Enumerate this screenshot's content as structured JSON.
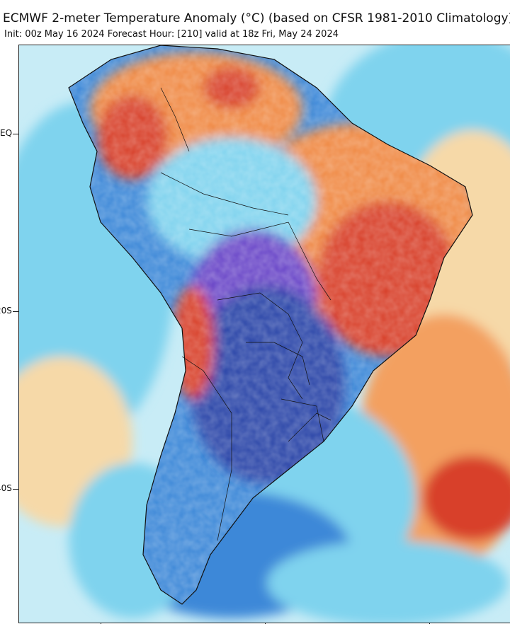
{
  "header": {
    "title": "ECMWF 2-meter Temperature Anomaly (°C) (based on CFSR 1981-2010 Climatology)",
    "subtitle": "Init: 00z May 16 2024   Forecast Hour: [210]   valid at 18z Fri, May 24 2024"
  },
  "axis": {
    "lat_labels": [
      "EQ",
      "20S",
      "40S"
    ]
  },
  "colors": {
    "ocean_warm_light": "#f6d9a8",
    "ocean_cool_light": "#c8ecf6",
    "ocean_cyan": "#7fd3ee",
    "ocean_blue": "#3c88d8",
    "land_deep_blue": "#2a45a8",
    "land_purple": "#6b47c8",
    "land_orange": "#f08a45",
    "land_red": "#d8412c",
    "ocean_orange": "#f3a060",
    "coastline": "#111111"
  }
}
